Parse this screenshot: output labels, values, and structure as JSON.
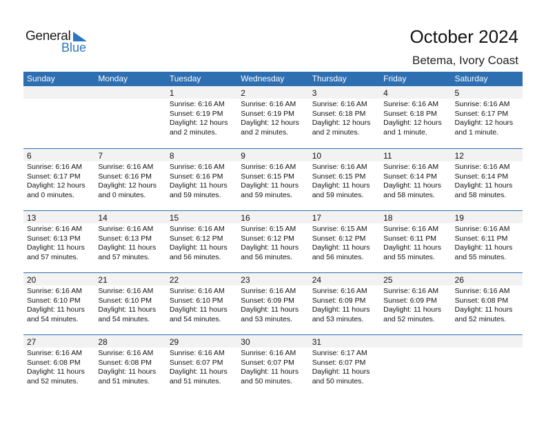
{
  "logo": {
    "text_general": "General",
    "text_blue": "Blue"
  },
  "title": "October 2024",
  "location": "Betema, Ivory Coast",
  "colors": {
    "header": "#2e6fb2",
    "brand": "#2a77c0",
    "day_band": "#f2f2f2"
  },
  "weekdays": [
    "Sunday",
    "Monday",
    "Tuesday",
    "Wednesday",
    "Thursday",
    "Friday",
    "Saturday"
  ],
  "weeks": [
    [
      null,
      null,
      {
        "day": "1",
        "sunrise": "Sunrise: 6:16 AM",
        "sunset": "Sunset: 6:19 PM",
        "daylight1": "Daylight: 12 hours",
        "daylight2": "and 2 minutes."
      },
      {
        "day": "2",
        "sunrise": "Sunrise: 6:16 AM",
        "sunset": "Sunset: 6:19 PM",
        "daylight1": "Daylight: 12 hours",
        "daylight2": "and 2 minutes."
      },
      {
        "day": "3",
        "sunrise": "Sunrise: 6:16 AM",
        "sunset": "Sunset: 6:18 PM",
        "daylight1": "Daylight: 12 hours",
        "daylight2": "and 2 minutes."
      },
      {
        "day": "4",
        "sunrise": "Sunrise: 6:16 AM",
        "sunset": "Sunset: 6:18 PM",
        "daylight1": "Daylight: 12 hours",
        "daylight2": "and 1 minute."
      },
      {
        "day": "5",
        "sunrise": "Sunrise: 6:16 AM",
        "sunset": "Sunset: 6:17 PM",
        "daylight1": "Daylight: 12 hours",
        "daylight2": "and 1 minute."
      }
    ],
    [
      {
        "day": "6",
        "sunrise": "Sunrise: 6:16 AM",
        "sunset": "Sunset: 6:17 PM",
        "daylight1": "Daylight: 12 hours",
        "daylight2": "and 0 minutes."
      },
      {
        "day": "7",
        "sunrise": "Sunrise: 6:16 AM",
        "sunset": "Sunset: 6:16 PM",
        "daylight1": "Daylight: 12 hours",
        "daylight2": "and 0 minutes."
      },
      {
        "day": "8",
        "sunrise": "Sunrise: 6:16 AM",
        "sunset": "Sunset: 6:16 PM",
        "daylight1": "Daylight: 11 hours",
        "daylight2": "and 59 minutes."
      },
      {
        "day": "9",
        "sunrise": "Sunrise: 6:16 AM",
        "sunset": "Sunset: 6:15 PM",
        "daylight1": "Daylight: 11 hours",
        "daylight2": "and 59 minutes."
      },
      {
        "day": "10",
        "sunrise": "Sunrise: 6:16 AM",
        "sunset": "Sunset: 6:15 PM",
        "daylight1": "Daylight: 11 hours",
        "daylight2": "and 59 minutes."
      },
      {
        "day": "11",
        "sunrise": "Sunrise: 6:16 AM",
        "sunset": "Sunset: 6:14 PM",
        "daylight1": "Daylight: 11 hours",
        "daylight2": "and 58 minutes."
      },
      {
        "day": "12",
        "sunrise": "Sunrise: 6:16 AM",
        "sunset": "Sunset: 6:14 PM",
        "daylight1": "Daylight: 11 hours",
        "daylight2": "and 58 minutes."
      }
    ],
    [
      {
        "day": "13",
        "sunrise": "Sunrise: 6:16 AM",
        "sunset": "Sunset: 6:13 PM",
        "daylight1": "Daylight: 11 hours",
        "daylight2": "and 57 minutes."
      },
      {
        "day": "14",
        "sunrise": "Sunrise: 6:16 AM",
        "sunset": "Sunset: 6:13 PM",
        "daylight1": "Daylight: 11 hours",
        "daylight2": "and 57 minutes."
      },
      {
        "day": "15",
        "sunrise": "Sunrise: 6:16 AM",
        "sunset": "Sunset: 6:12 PM",
        "daylight1": "Daylight: 11 hours",
        "daylight2": "and 56 minutes."
      },
      {
        "day": "16",
        "sunrise": "Sunrise: 6:15 AM",
        "sunset": "Sunset: 6:12 PM",
        "daylight1": "Daylight: 11 hours",
        "daylight2": "and 56 minutes."
      },
      {
        "day": "17",
        "sunrise": "Sunrise: 6:15 AM",
        "sunset": "Sunset: 6:12 PM",
        "daylight1": "Daylight: 11 hours",
        "daylight2": "and 56 minutes."
      },
      {
        "day": "18",
        "sunrise": "Sunrise: 6:16 AM",
        "sunset": "Sunset: 6:11 PM",
        "daylight1": "Daylight: 11 hours",
        "daylight2": "and 55 minutes."
      },
      {
        "day": "19",
        "sunrise": "Sunrise: 6:16 AM",
        "sunset": "Sunset: 6:11 PM",
        "daylight1": "Daylight: 11 hours",
        "daylight2": "and 55 minutes."
      }
    ],
    [
      {
        "day": "20",
        "sunrise": "Sunrise: 6:16 AM",
        "sunset": "Sunset: 6:10 PM",
        "daylight1": "Daylight: 11 hours",
        "daylight2": "and 54 minutes."
      },
      {
        "day": "21",
        "sunrise": "Sunrise: 6:16 AM",
        "sunset": "Sunset: 6:10 PM",
        "daylight1": "Daylight: 11 hours",
        "daylight2": "and 54 minutes."
      },
      {
        "day": "22",
        "sunrise": "Sunrise: 6:16 AM",
        "sunset": "Sunset: 6:10 PM",
        "daylight1": "Daylight: 11 hours",
        "daylight2": "and 54 minutes."
      },
      {
        "day": "23",
        "sunrise": "Sunrise: 6:16 AM",
        "sunset": "Sunset: 6:09 PM",
        "daylight1": "Daylight: 11 hours",
        "daylight2": "and 53 minutes."
      },
      {
        "day": "24",
        "sunrise": "Sunrise: 6:16 AM",
        "sunset": "Sunset: 6:09 PM",
        "daylight1": "Daylight: 11 hours",
        "daylight2": "and 53 minutes."
      },
      {
        "day": "25",
        "sunrise": "Sunrise: 6:16 AM",
        "sunset": "Sunset: 6:09 PM",
        "daylight1": "Daylight: 11 hours",
        "daylight2": "and 52 minutes."
      },
      {
        "day": "26",
        "sunrise": "Sunrise: 6:16 AM",
        "sunset": "Sunset: 6:08 PM",
        "daylight1": "Daylight: 11 hours",
        "daylight2": "and 52 minutes."
      }
    ],
    [
      {
        "day": "27",
        "sunrise": "Sunrise: 6:16 AM",
        "sunset": "Sunset: 6:08 PM",
        "daylight1": "Daylight: 11 hours",
        "daylight2": "and 52 minutes."
      },
      {
        "day": "28",
        "sunrise": "Sunrise: 6:16 AM",
        "sunset": "Sunset: 6:08 PM",
        "daylight1": "Daylight: 11 hours",
        "daylight2": "and 51 minutes."
      },
      {
        "day": "29",
        "sunrise": "Sunrise: 6:16 AM",
        "sunset": "Sunset: 6:07 PM",
        "daylight1": "Daylight: 11 hours",
        "daylight2": "and 51 minutes."
      },
      {
        "day": "30",
        "sunrise": "Sunrise: 6:16 AM",
        "sunset": "Sunset: 6:07 PM",
        "daylight1": "Daylight: 11 hours",
        "daylight2": "and 50 minutes."
      },
      {
        "day": "31",
        "sunrise": "Sunrise: 6:17 AM",
        "sunset": "Sunset: 6:07 PM",
        "daylight1": "Daylight: 11 hours",
        "daylight2": "and 50 minutes."
      },
      null,
      null
    ]
  ]
}
